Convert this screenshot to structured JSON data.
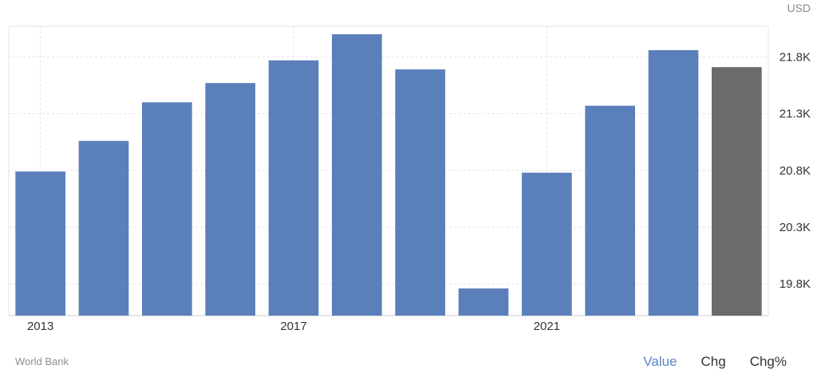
{
  "unit_label": "USD",
  "source_label": "World Bank",
  "tabs": [
    {
      "label": "Value",
      "active": true
    },
    {
      "label": "Chg",
      "active": false
    },
    {
      "label": "Chg%",
      "active": false
    }
  ],
  "colors": {
    "bar": "#5b7fba",
    "forecast_bar": "#6b6b6b",
    "grid": "#e3e3e3",
    "axis_text": "#333333",
    "active_tab": "#5b86c5"
  },
  "chart_data": {
    "type": "bar",
    "categories": [
      "2013",
      "2014",
      "2015",
      "2016",
      "2017",
      "2018",
      "2019",
      "2020",
      "2021",
      "2022",
      "2023",
      "2024"
    ],
    "values": [
      20.79,
      21.06,
      21.4,
      21.57,
      21.77,
      22.0,
      21.69,
      19.76,
      20.78,
      21.37,
      21.86,
      21.71
    ],
    "highlighted_last": true,
    "x_tick_labels": [
      "2013",
      "2017",
      "2021"
    ],
    "y_ticks": [
      19.8,
      20.3,
      20.8,
      21.3,
      21.8
    ],
    "y_tick_labels": [
      "19.8K",
      "20.3K",
      "20.8K",
      "21.3K",
      "21.8K"
    ],
    "ylim": [
      19.52,
      22.07
    ],
    "y_axis_position": "right",
    "grid": true,
    "title": "",
    "xlabel": "",
    "ylabel": ""
  }
}
